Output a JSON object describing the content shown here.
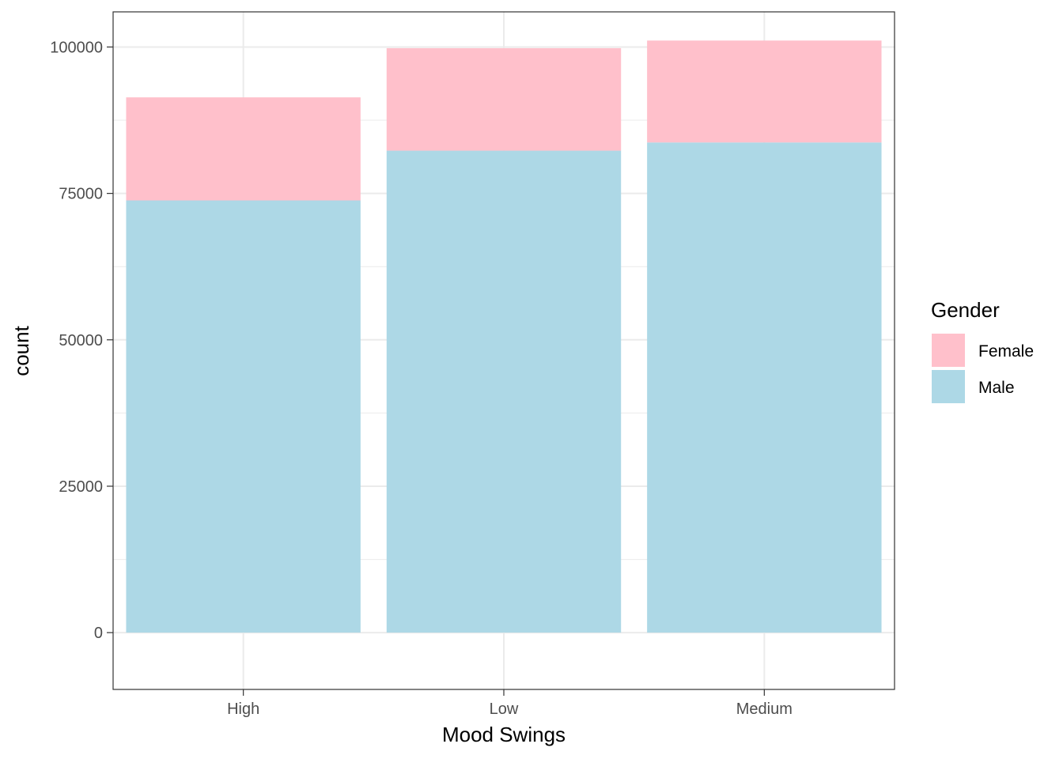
{
  "chart_data": {
    "type": "bar",
    "stacked": true,
    "categories": [
      "High",
      "Low",
      "Medium"
    ],
    "series": [
      {
        "name": "Male",
        "values": [
          73800,
          82300,
          83700
        ],
        "color": "#ADD8E6"
      },
      {
        "name": "Female",
        "values": [
          17600,
          17500,
          17400
        ],
        "color": "#FFC0CB"
      }
    ],
    "xlabel": "Mood Swings",
    "ylabel": "count",
    "ylim": [
      -9700,
      106000
    ],
    "yticks": [
      0,
      25000,
      50000,
      75000,
      100000
    ],
    "ytick_labels": [
      "0",
      "25000",
      "50000",
      "75000",
      "100000"
    ],
    "grid": true,
    "legend": {
      "title": "Gender",
      "position": "right",
      "entries": [
        {
          "label": "Female",
          "color": "#FFC0CB"
        },
        {
          "label": "Male",
          "color": "#ADD8E6"
        }
      ]
    }
  }
}
